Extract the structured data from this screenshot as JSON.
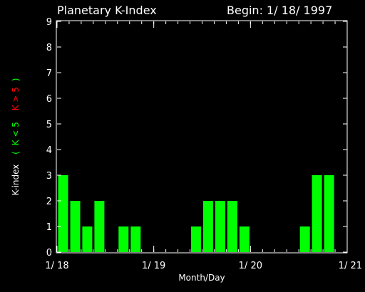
{
  "header": {
    "title": "Planetary K-Index",
    "begin": "Begin: 1/ 18/ 1997"
  },
  "colors": {
    "background": "#000000",
    "axis": "#ffffff",
    "bar": "#00ff00",
    "low": "#00ff00",
    "high": "#ff0000"
  },
  "chart_data": {
    "type": "bar",
    "title": "Planetary K-Index",
    "xlabel": "Month/Day",
    "ylabel": {
      "prefix": "K-index",
      "open": "(",
      "low": "K < 5",
      "high": "K > 5",
      "close": ")"
    },
    "ylim": [
      0,
      9
    ],
    "yticks": [
      "0",
      "1",
      "2",
      "3",
      "4",
      "5",
      "6",
      "7",
      "8",
      "9"
    ],
    "xticks": [
      {
        "label": "1/ 18",
        "day": 0
      },
      {
        "label": "1/ 19",
        "day": 1
      },
      {
        "label": "1/ 20",
        "day": 2
      },
      {
        "label": "1/ 21",
        "day": 3
      }
    ],
    "interval_hours": 3,
    "values": [
      3,
      2,
      1,
      2,
      0,
      1,
      1,
      0,
      0,
      0,
      0,
      1,
      2,
      2,
      2,
      1,
      0,
      0,
      0,
      0,
      1,
      3,
      3,
      0
    ]
  }
}
